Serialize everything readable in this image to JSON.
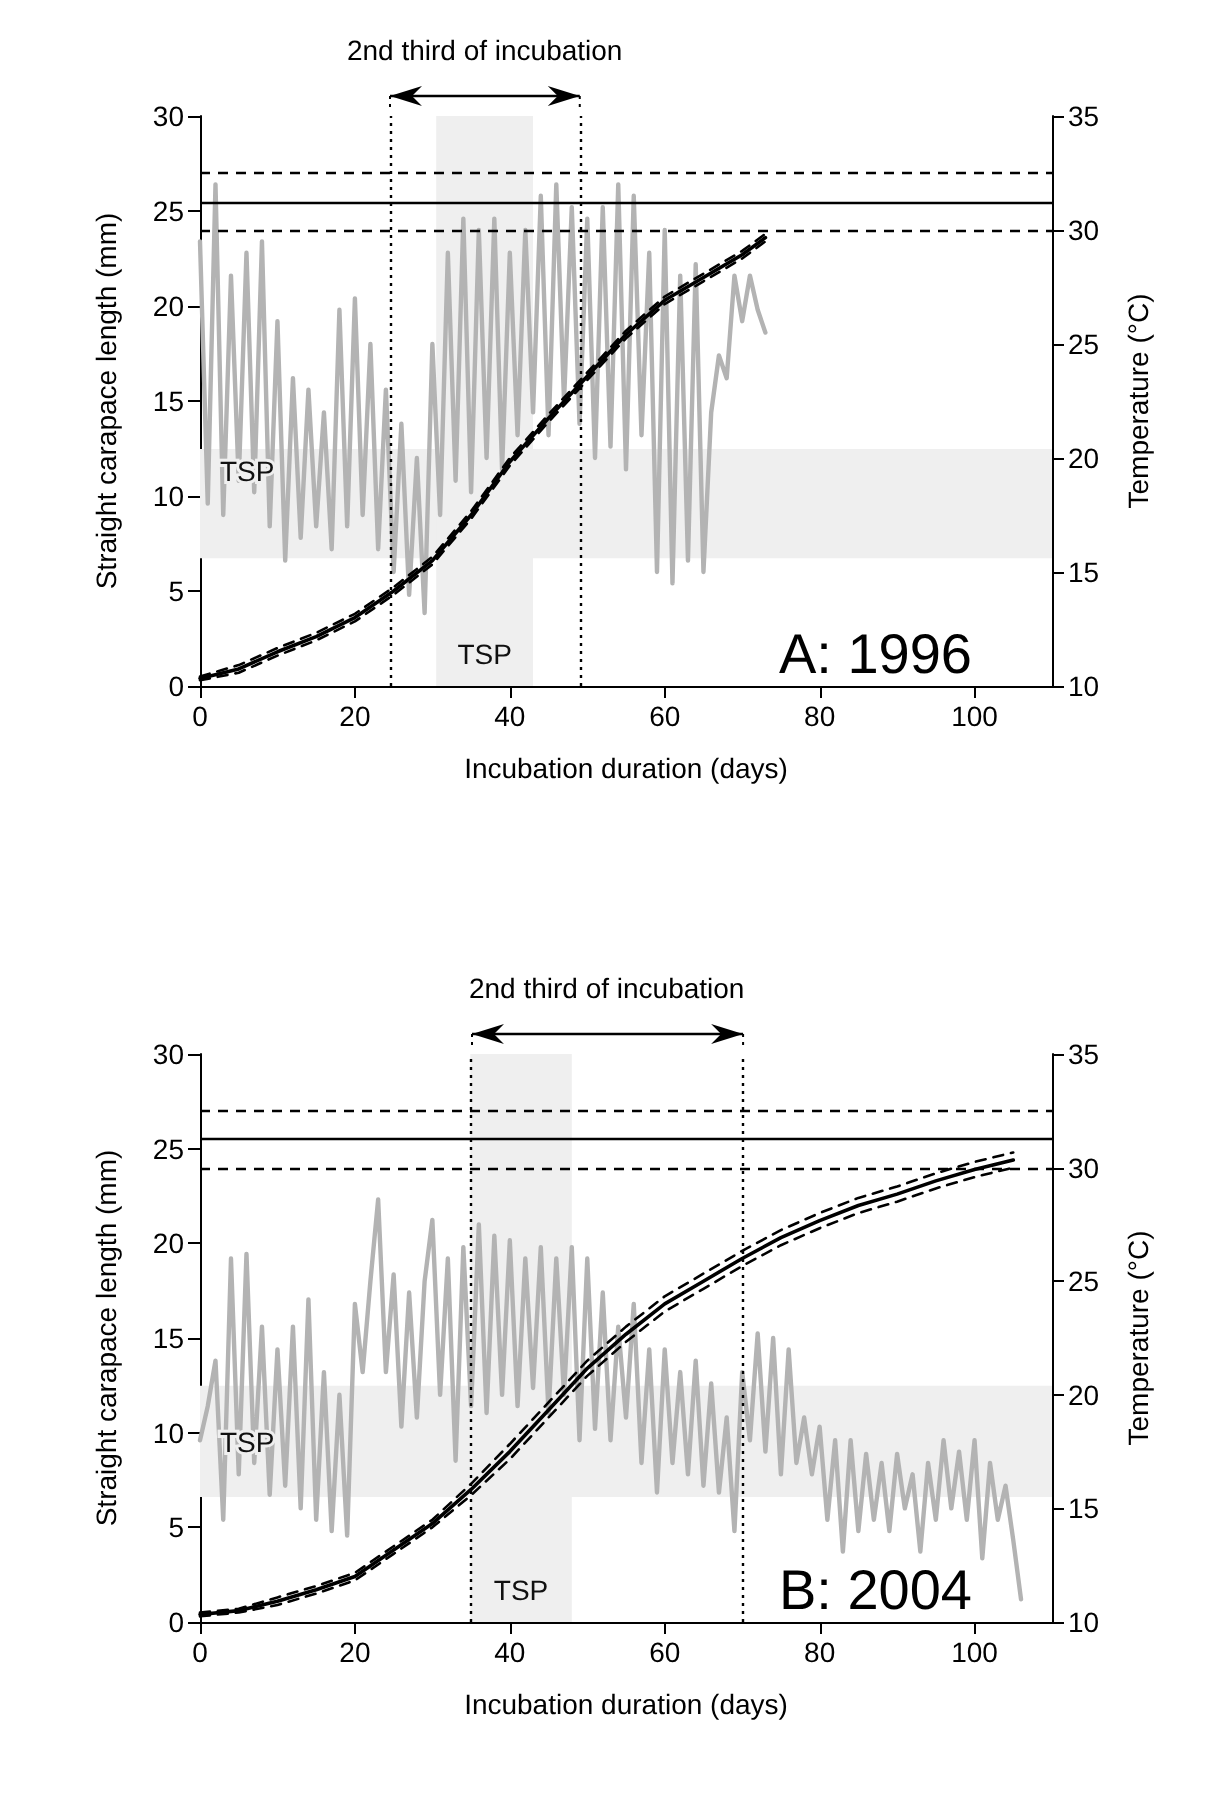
{
  "chart_data": [
    {
      "type": "line",
      "xlabel": "Incubation duration (days)",
      "ylabel": "Straight carapace length (mm)",
      "y2label": "Temperature (°C)",
      "annotations": [
        "2nd third of incubation",
        "A: 1996"
      ],
      "xlim": [
        0,
        110
      ],
      "xticks": [
        0,
        20,
        40,
        60,
        80,
        100
      ],
      "ylim": [
        0,
        30
      ],
      "yticks": [
        0,
        5,
        10,
        15,
        20,
        25,
        30
      ],
      "y2lim": [
        10,
        35
      ],
      "y2ticks": [
        10,
        15,
        20,
        25,
        30,
        35
      ],
      "grid": false,
      "marker": "none",
      "series": [
        {
          "type": "line",
          "color": "#b3b3b3",
          "axis": "y2",
          "x": [
            0,
            1,
            2,
            3,
            4,
            5,
            6,
            7,
            8,
            9,
            10,
            11,
            12,
            13,
            14,
            15,
            16,
            17,
            18,
            19,
            20,
            21,
            22,
            23,
            24,
            25,
            26,
            27,
            28,
            29,
            30,
            31,
            32,
            33,
            34,
            35,
            36,
            37,
            38,
            39,
            40,
            41,
            42,
            43,
            44,
            45,
            46,
            47,
            48,
            49,
            50,
            51,
            52,
            53,
            54,
            55,
            56,
            57,
            58,
            59,
            60,
            61,
            62,
            63,
            64,
            65,
            66,
            67,
            68,
            69,
            70,
            71,
            72,
            73
          ],
          "values": [
            29.5,
            18,
            32,
            17.5,
            28,
            19,
            29,
            18.5,
            29.5,
            17,
            26,
            15.5,
            23.5,
            16.5,
            23,
            17,
            22,
            16,
            26.5,
            17,
            27,
            17.5,
            25,
            16,
            23,
            15,
            21.5,
            14,
            20,
            13.2,
            25,
            17.5,
            29,
            19,
            30.5,
            18.5,
            30,
            20,
            30.5,
            19.5,
            29,
            21,
            30,
            22,
            31.5,
            21,
            32,
            22.5,
            31,
            21.5,
            30.5,
            20,
            31,
            20.5,
            32,
            19.5,
            31.5,
            21,
            29,
            15,
            30,
            14.5,
            28,
            15.5,
            28.5,
            15,
            22,
            24.5,
            23.5,
            28,
            26,
            28,
            26.5,
            25.5
          ]
        },
        {
          "type": "line",
          "color": "#000000",
          "line_style": "solid",
          "x": [
            0,
            5,
            10,
            15,
            20,
            25,
            30,
            35,
            40,
            45,
            50,
            55,
            60,
            65,
            70,
            73
          ],
          "values": [
            0.4,
            0.9,
            1.8,
            2.6,
            3.6,
            5.0,
            6.6,
            9.0,
            11.8,
            14.1,
            16.3,
            18.5,
            20.3,
            21.5,
            22.7,
            23.6
          ]
        },
        {
          "type": "line",
          "color": "#000000",
          "line_style": "dashed",
          "x": [
            0,
            5,
            10,
            15,
            20,
            25,
            30,
            35,
            40,
            45,
            50,
            55,
            60,
            65,
            70,
            73
          ],
          "values": [
            0.3,
            0.7,
            1.6,
            2.4,
            3.4,
            4.8,
            6.4,
            8.8,
            11.6,
            13.9,
            16.1,
            18.3,
            20.1,
            21.3,
            22.5,
            23.4
          ]
        },
        {
          "type": "line",
          "color": "#000000",
          "line_style": "dashed",
          "x": [
            0,
            5,
            10,
            15,
            20,
            25,
            30,
            35,
            40,
            45,
            50,
            55,
            60,
            65,
            70,
            73
          ],
          "values": [
            0.5,
            1.1,
            2.0,
            2.8,
            3.8,
            5.2,
            6.8,
            9.2,
            12.0,
            14.3,
            16.5,
            18.7,
            20.5,
            21.7,
            22.9,
            23.8
          ]
        }
      ],
      "ref_lines": [
        {
          "axis": "y2",
          "value": 32.5,
          "line_style": "dashed",
          "color": "#000000"
        },
        {
          "axis": "y2",
          "value": 31.25,
          "line_style": "solid",
          "color": "#000000"
        },
        {
          "axis": "y2",
          "value": 30,
          "line_style": "dashed",
          "color": "#000000"
        },
        {
          "axis": "x",
          "value": 24.5,
          "line_style": "dotted",
          "color": "#000000"
        },
        {
          "axis": "x",
          "value": 49,
          "line_style": "dotted",
          "color": "#000000"
        }
      ],
      "bands": [
        {
          "axis": "y2",
          "from": 15.6,
          "to": 20.4,
          "label": "TSP",
          "color": "#efefef"
        },
        {
          "axis": "x",
          "from": 30.5,
          "to": 43,
          "label": "TSP",
          "color": "#efefef"
        }
      ]
    },
    {
      "type": "line",
      "xlabel": "Incubation duration (days)",
      "ylabel": "Straight carapace length (mm)",
      "y2label": "Temperature (°C)",
      "annotations": [
        "2nd third of incubation",
        "B: 2004"
      ],
      "xlim": [
        0,
        110
      ],
      "xticks": [
        0,
        20,
        40,
        60,
        80,
        100
      ],
      "ylim": [
        0,
        30
      ],
      "yticks": [
        0,
        5,
        10,
        15,
        20,
        25,
        30
      ],
      "y2lim": [
        10,
        35
      ],
      "y2ticks": [
        10,
        15,
        20,
        25,
        30,
        35
      ],
      "grid": false,
      "marker": "none",
      "series": [
        {
          "type": "line",
          "color": "#b3b3b3",
          "axis": "y2",
          "x": [
            0,
            1,
            2,
            3,
            4,
            5,
            6,
            7,
            8,
            9,
            10,
            11,
            12,
            13,
            14,
            15,
            16,
            17,
            18,
            19,
            20,
            21,
            22,
            23,
            24,
            25,
            26,
            27,
            28,
            29,
            30,
            31,
            32,
            33,
            34,
            35,
            36,
            37,
            38,
            39,
            40,
            41,
            42,
            43,
            44,
            45,
            46,
            47,
            48,
            49,
            50,
            51,
            52,
            53,
            54,
            55,
            56,
            57,
            58,
            59,
            60,
            61,
            62,
            63,
            64,
            65,
            66,
            67,
            68,
            69,
            70,
            71,
            72,
            73,
            74,
            75,
            76,
            77,
            78,
            79,
            80,
            81,
            82,
            83,
            84,
            85,
            86,
            87,
            88,
            89,
            90,
            91,
            92,
            93,
            94,
            95,
            96,
            97,
            98,
            99,
            100,
            101,
            102,
            103,
            104,
            105,
            106
          ],
          "values": [
            18,
            19.5,
            21.5,
            14.5,
            26,
            16.5,
            26.2,
            17,
            23,
            15.6,
            22,
            16,
            23,
            15,
            24.2,
            14.5,
            21,
            14,
            20,
            13.8,
            24,
            21,
            25,
            28.6,
            21,
            25.3,
            18.6,
            24.5,
            19,
            25,
            27.7,
            20,
            26,
            17.1,
            26.5,
            19.5,
            27.5,
            19.2,
            27,
            20,
            26.8,
            19.5,
            26,
            20.3,
            26.5,
            19.2,
            26,
            20,
            26.5,
            18,
            26,
            18.5,
            24.5,
            18,
            23,
            19,
            24,
            17,
            22,
            15.7,
            22,
            17,
            21,
            16.5,
            21.5,
            16,
            20.5,
            15.7,
            19,
            14,
            21,
            18,
            22.7,
            17.5,
            22.5,
            16.5,
            22,
            17,
            19,
            16.5,
            18.6,
            14.5,
            18,
            13.1,
            18,
            14,
            17.4,
            14.5,
            17,
            14,
            17.4,
            15,
            16.5,
            13.1,
            17,
            14.5,
            18,
            15,
            17.5,
            14.5,
            18,
            12.8,
            17,
            14.5,
            16,
            13.6,
            11
          ]
        },
        {
          "type": "line",
          "color": "#000000",
          "line_style": "solid",
          "x": [
            0,
            5,
            10,
            15,
            20,
            25,
            30,
            35,
            40,
            45,
            50,
            55,
            60,
            65,
            70,
            75,
            80,
            85,
            90,
            95,
            100,
            105
          ],
          "values": [
            0.4,
            0.6,
            1.1,
            1.7,
            2.4,
            3.8,
            5.2,
            7.0,
            9.0,
            11.2,
            13.4,
            15.2,
            16.8,
            18.0,
            19.2,
            20.3,
            21.2,
            22.0,
            22.6,
            23.3,
            23.9,
            24.4
          ]
        },
        {
          "type": "line",
          "color": "#000000",
          "line_style": "dashed",
          "x": [
            0,
            5,
            10,
            15,
            20,
            25,
            30,
            35,
            40,
            45,
            50,
            55,
            60,
            65,
            70,
            75,
            80,
            85,
            90,
            95,
            100,
            105
          ],
          "values": [
            0.3,
            0.5,
            0.9,
            1.5,
            2.2,
            3.6,
            5.0,
            6.7,
            8.6,
            10.8,
            13.0,
            14.8,
            16.4,
            17.6,
            18.8,
            19.9,
            20.8,
            21.6,
            22.2,
            22.9,
            23.5,
            24.0
          ]
        },
        {
          "type": "line",
          "color": "#000000",
          "line_style": "dashed",
          "x": [
            0,
            5,
            10,
            15,
            20,
            25,
            30,
            35,
            40,
            45,
            50,
            55,
            60,
            65,
            70,
            75,
            80,
            85,
            90,
            95,
            100,
            105
          ],
          "values": [
            0.5,
            0.7,
            1.3,
            1.9,
            2.6,
            4.0,
            5.4,
            7.3,
            9.4,
            11.6,
            13.8,
            15.6,
            17.2,
            18.4,
            19.6,
            20.7,
            21.6,
            22.4,
            23.0,
            23.7,
            24.3,
            24.8
          ]
        }
      ],
      "ref_lines": [
        {
          "axis": "y2",
          "value": 32.5,
          "line_style": "dashed",
          "color": "#000000"
        },
        {
          "axis": "y2",
          "value": 31.25,
          "line_style": "solid",
          "color": "#000000"
        },
        {
          "axis": "y2",
          "value": 30,
          "line_style": "dashed",
          "color": "#000000"
        },
        {
          "axis": "x",
          "value": 35,
          "line_style": "dotted",
          "color": "#000000"
        },
        {
          "axis": "x",
          "value": 70,
          "line_style": "dotted",
          "color": "#000000"
        }
      ],
      "bands": [
        {
          "axis": "y2",
          "from": 15.5,
          "to": 20.4,
          "label": "TSP",
          "color": "#efefef"
        },
        {
          "axis": "x",
          "from": 34.9,
          "to": 48,
          "label": "TSP",
          "color": "#efefef"
        }
      ]
    }
  ]
}
